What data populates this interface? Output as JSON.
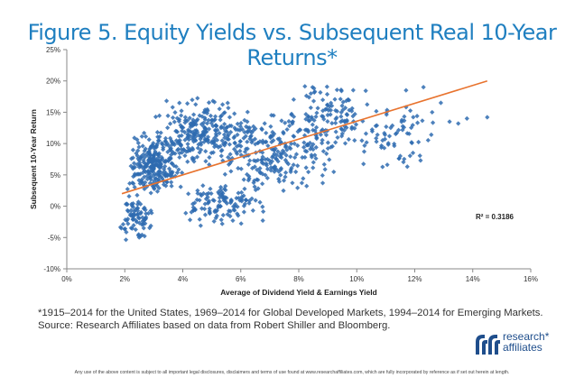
{
  "title": "Figure 5. Equity Yields vs. Subsequent Real 10-Year Returns*",
  "notes": {
    "line1": "*1915–2014 for the United States, 1969–2014 for Global Developed Markets, 1994–2014 for Emerging Markets.",
    "line2": "Source: Research Affiliates based on data from Robert Shiller and Bloomberg."
  },
  "logo": {
    "line1": "research*",
    "line2": "affiliates"
  },
  "disclaimer": "Any use of the above content is subject to all important legal disclosures, disclaimers and terms of use found at www.researchaffiliates.com, which are fully incorporated by reference as if set out herein at length.",
  "colors": {
    "title": "#1f7fc0",
    "points": "#2e6bb0",
    "trend": "#e8732e"
  },
  "chart_data": {
    "type": "scatter",
    "title": "Figure 5. Equity Yields vs. Subsequent Real 10-Year Returns*",
    "xlabel": "Average of Dividend Yield & Earnings Yield",
    "ylabel": "Subsequent 10-Year Return",
    "xlim": [
      0,
      16
    ],
    "ylim": [
      -10,
      25
    ],
    "xticks": [
      "0%",
      "2%",
      "4%",
      "6%",
      "8%",
      "10%",
      "12%",
      "14%",
      "16%"
    ],
    "yticks": [
      "-10%",
      "-5%",
      "0%",
      "5%",
      "10%",
      "15%",
      "20%",
      "25%"
    ],
    "grid": false,
    "annotation": "R² = 0.3186",
    "trendline": {
      "x": [
        1.9,
        14.5
      ],
      "y": [
        2.0,
        20.0
      ]
    },
    "clusters": [
      {
        "x": [
          1.8,
          3.0
        ],
        "y": [
          -6.0,
          2.0
        ],
        "n": 80
      },
      {
        "x": [
          2.0,
          4.0
        ],
        "y": [
          2.0,
          12.0
        ],
        "n": 260
      },
      {
        "x": [
          3.0,
          6.5
        ],
        "y": [
          6.0,
          17.5
        ],
        "n": 260
      },
      {
        "x": [
          3.8,
          7.0
        ],
        "y": [
          -3.5,
          4.0
        ],
        "n": 120
      },
      {
        "x": [
          5.0,
          9.5
        ],
        "y": [
          2.0,
          15.0
        ],
        "n": 220
      },
      {
        "x": [
          7.5,
          10.5
        ],
        "y": [
          9.0,
          20.0
        ],
        "n": 120
      },
      {
        "x": [
          9.5,
          13.0
        ],
        "y": [
          5.0,
          18.0
        ],
        "n": 70
      }
    ],
    "points": [
      [
        13.2,
        13.5
      ],
      [
        13.8,
        14.0
      ],
      [
        14.5,
        14.2
      ],
      [
        12.6,
        15.0
      ],
      [
        12.9,
        16.5
      ],
      [
        12.3,
        19.0
      ],
      [
        11.7,
        18.5
      ],
      [
        12.2,
        7.3
      ],
      [
        11.5,
        8.0
      ],
      [
        13.5,
        13.2
      ]
    ]
  }
}
